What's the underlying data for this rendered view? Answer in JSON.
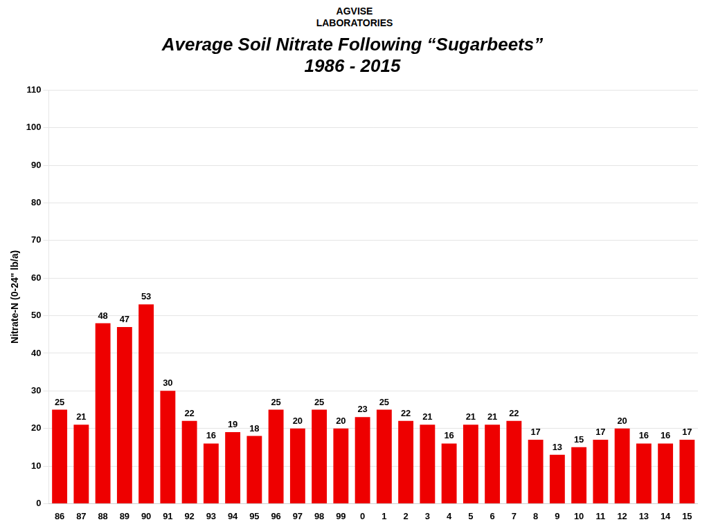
{
  "chart_data": {
    "type": "bar",
    "title": "Average Soil Nitrate Following “Sugarbeets”\n1986 - 2015",
    "annotations": [
      "AGVISE\nLABORATORIES"
    ],
    "ylabel": "Nitrate-N (0-24\" lb/a)",
    "categories": [
      "86",
      "87",
      "88",
      "89",
      "90",
      "91",
      "92",
      "93",
      "94",
      "95",
      "96",
      "97",
      "98",
      "99",
      "0",
      "1",
      "2",
      "3",
      "4",
      "5",
      "6",
      "7",
      "8",
      "9",
      "10",
      "11",
      "12",
      "13",
      "14",
      "15"
    ],
    "values": [
      25,
      21,
      48,
      47,
      53,
      30,
      22,
      16,
      19,
      18,
      25,
      20,
      25,
      20,
      23,
      25,
      22,
      21,
      16,
      21,
      21,
      22,
      17,
      13,
      15,
      17,
      20,
      16,
      16,
      17
    ],
    "color": "#ee0000",
    "ylim": [
      0,
      110
    ],
    "yticks": [
      0,
      10,
      20,
      30,
      40,
      50,
      60,
      70,
      80,
      90,
      100,
      110
    ],
    "grid": true,
    "data_labels": true
  }
}
